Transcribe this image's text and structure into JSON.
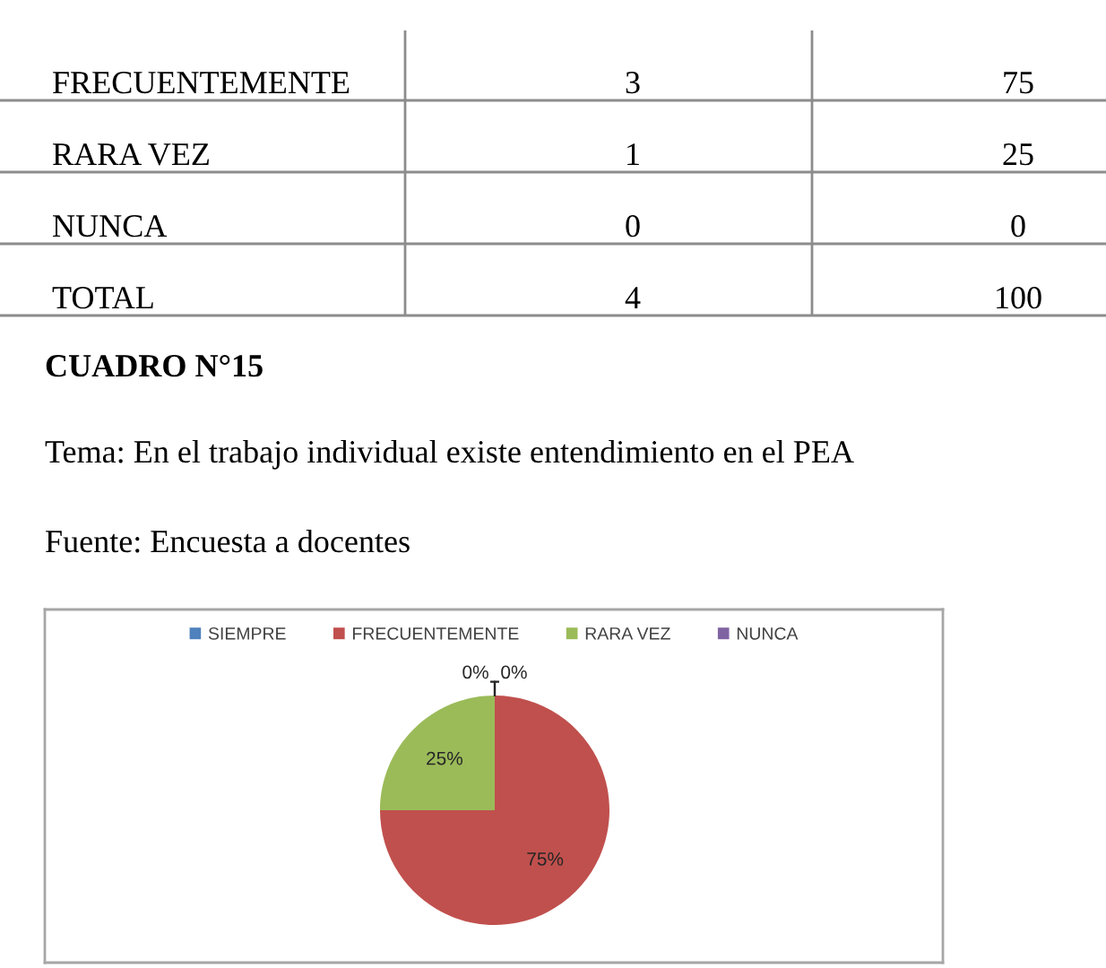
{
  "chart_data": [
    {
      "type": "other",
      "annotations": [
        "FRECUENTEMENTE",
        "3",
        "75",
        "RARA VEZ",
        "1",
        "25",
        "NUNCA",
        "0",
        "0",
        "TOTAL",
        "4",
        "100"
      ]
    },
    {
      "type": "pie",
      "title": "CUADRO N°15",
      "subtitle": "Tema: En el trabajo individual existe entendimiento en el PEA",
      "annotations": [
        "Fuente: Encuesta a docentes"
      ],
      "categories": [
        "SIEMPRE",
        "FRECUENTEMENTE",
        "RARA VEZ",
        "NUNCA"
      ],
      "values": [
        0,
        75,
        25,
        0
      ],
      "colors": [
        "#4f81bd",
        "#c0504d",
        "#9bbb59",
        "#8064a2"
      ],
      "value_labels": [
        "0%",
        "75%",
        "25%",
        "0%"
      ],
      "legend": "top"
    }
  ]
}
